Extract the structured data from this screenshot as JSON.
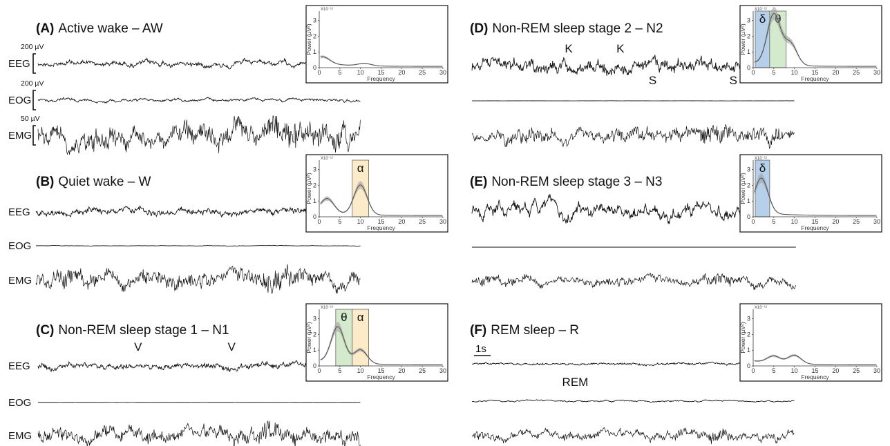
{
  "panels": [
    {
      "id": "A",
      "tag": "(A)",
      "title": "Active wake – AW",
      "channels": [
        {
          "label": "EEG",
          "scale": "200 µV",
          "amp": 5,
          "noise": 0.8,
          "fast": 1.2
        },
        {
          "label": "EOG",
          "scale": "200 µV",
          "amp": 4,
          "noise": 0.6,
          "fast": 0.6
        },
        {
          "label": "EMG",
          "scale": "50 µV",
          "amp": 13,
          "noise": 1.0,
          "fast": 2.5
        }
      ],
      "markers": [],
      "inset": {
        "exponent": "X10⁻¹²",
        "peaks": [
          [
            1,
            0.4
          ],
          [
            11,
            0.15
          ]
        ],
        "bands": []
      }
    },
    {
      "id": "B",
      "tag": "(B)",
      "title": "Quiet wake – W",
      "channels": [
        {
          "label": "EEG",
          "amp": 6,
          "noise": 0.7,
          "fast": 1.5
        },
        {
          "label": "EOG",
          "amp": 1.5,
          "noise": 0.2,
          "fast": 0.2
        },
        {
          "label": "EMG",
          "amp": 10,
          "noise": 1.0,
          "fast": 2.5
        }
      ],
      "markers": [],
      "inset": {
        "exponent": "X10⁻¹²",
        "peaks": [
          [
            2,
            0.9
          ],
          [
            10,
            1.9
          ]
        ],
        "bands": [
          {
            "symbol": "α",
            "from": 8,
            "to": 12,
            "color": "#fbe7bf"
          }
        ]
      }
    },
    {
      "id": "C",
      "tag": "(C)",
      "title": "Non-REM sleep stage 1 – N1",
      "channels": [
        {
          "label": "EEG",
          "amp": 6,
          "noise": 0.7,
          "fast": 1.4
        },
        {
          "label": "EOG",
          "amp": 0.6,
          "noise": 0.1,
          "fast": 0.1
        },
        {
          "label": "EMG",
          "amp": 9,
          "noise": 1.0,
          "fast": 2.5
        }
      ],
      "markers": [
        {
          "text": "V",
          "channel": 0,
          "at": 0.31
        },
        {
          "text": "V",
          "channel": 0,
          "at": 0.6
        }
      ],
      "inset": {
        "exponent": "X10⁻¹²",
        "peaks": [
          [
            4.5,
            2.3
          ],
          [
            10,
            0.9
          ]
        ],
        "bands": [
          {
            "symbol": "θ",
            "from": 4,
            "to": 8,
            "color": "#cde6c4"
          },
          {
            "symbol": "α",
            "from": 8,
            "to": 12,
            "color": "#fbe7bf"
          }
        ]
      }
    },
    {
      "id": "D",
      "tag": "(D)",
      "title": "Non-REM sleep stage 2 – N2",
      "channels": [
        {
          "label": "",
          "amp": 11,
          "noise": 0.9,
          "fast": 1.6
        },
        {
          "label": "",
          "amp": 1.2,
          "noise": 0.1,
          "fast": 0.1
        },
        {
          "label": "",
          "amp": 8,
          "noise": 1.0,
          "fast": 2.5
        }
      ],
      "markers": [
        {
          "text": "K",
          "channel": 0,
          "at": 0.3
        },
        {
          "text": "K",
          "channel": 0,
          "at": 0.46
        },
        {
          "text": "S",
          "channel": 0,
          "at": 0.56,
          "below": true
        },
        {
          "text": "S",
          "channel": 0,
          "at": 0.81,
          "below": true
        }
      ],
      "inset": {
        "exponent": "X10⁻¹²",
        "peaks": [
          [
            5,
            3.2
          ],
          [
            9,
            1.4
          ]
        ],
        "bands": [
          {
            "symbol": "δ",
            "from": 0.5,
            "to": 4,
            "color": "#a9c8e6"
          },
          {
            "symbol": "θ",
            "from": 4,
            "to": 8,
            "color": "#cde6c4"
          }
        ]
      }
    },
    {
      "id": "E",
      "tag": "(E)",
      "title": "Non-REM sleep stage 3 – N3",
      "channels": [
        {
          "label": "",
          "amp": 14,
          "noise": 0.9,
          "fast": 0.9
        },
        {
          "label": "",
          "amp": 0.3,
          "noise": 0.05,
          "fast": 0.05
        },
        {
          "label": "",
          "amp": 6,
          "noise": 1.0,
          "fast": 2.0
        }
      ],
      "markers": [],
      "inset": {
        "exponent": "X10⁻¹²",
        "peaks": [
          [
            2,
            2.2
          ]
        ],
        "bands": [
          {
            "symbol": "δ",
            "from": 0.5,
            "to": 4,
            "color": "#a9c8e6"
          }
        ]
      }
    },
    {
      "id": "F",
      "tag": "(F)",
      "title": "REM sleep – R",
      "channels": [
        {
          "label": "",
          "amp": 3,
          "noise": 0.5,
          "fast": 1.0
        },
        {
          "label": "",
          "amp": 4,
          "noise": 0.3,
          "fast": 0.2
        },
        {
          "label": "",
          "amp": 6,
          "noise": 1.0,
          "fast": 2.0
        }
      ],
      "markers": [
        {
          "text": "REM",
          "channel": 1,
          "at": 0.32
        }
      ],
      "timescale": "1s",
      "inset": {
        "exponent": "X10⁻¹²",
        "peaks": [
          [
            5,
            0.45
          ],
          [
            10,
            0.55
          ]
        ],
        "bands": []
      }
    }
  ],
  "inset_axes": {
    "xlabel": "Frequency",
    "ylabel": "Power (µV²)",
    "xticks": [
      "0",
      "5",
      "10",
      "15",
      "20",
      "25",
      "30"
    ],
    "yticks": [
      "0",
      "1",
      "2",
      "3"
    ],
    "xlim": [
      0,
      30
    ],
    "ylim": [
      0,
      3.6
    ]
  }
}
